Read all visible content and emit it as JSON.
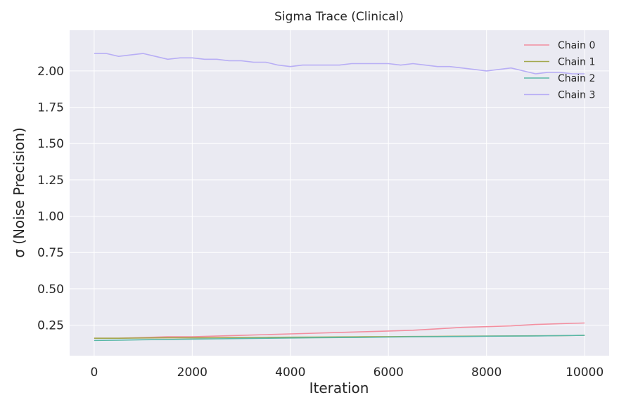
{
  "chart_data": {
    "type": "line",
    "title": "Sigma Trace (Clinical)",
    "xlabel": "Iteration",
    "ylabel": "σ (Noise Precision)",
    "xlim": [
      -500,
      10500
    ],
    "ylim": [
      0.04,
      2.28
    ],
    "xticks": [
      0,
      2000,
      4000,
      6000,
      8000,
      10000
    ],
    "yticks": [
      0.25,
      0.5,
      0.75,
      1.0,
      1.25,
      1.5,
      1.75,
      2.0
    ],
    "ytick_labels": [
      "0.25",
      "0.50",
      "0.75",
      "1.00",
      "1.25",
      "1.50",
      "1.75",
      "2.00"
    ],
    "grid": true,
    "legend_position": "top-right",
    "series": [
      {
        "name": "Chain 0",
        "color": "#f28e9f",
        "x": [
          0,
          500,
          1000,
          1500,
          2000,
          2500,
          3000,
          3500,
          4000,
          4500,
          5000,
          5500,
          6000,
          6500,
          7000,
          7500,
          8000,
          8500,
          9000,
          9500,
          10000
        ],
        "values": [
          0.16,
          0.16,
          0.165,
          0.17,
          0.17,
          0.175,
          0.18,
          0.185,
          0.19,
          0.195,
          0.2,
          0.205,
          0.21,
          0.215,
          0.225,
          0.235,
          0.24,
          0.245,
          0.255,
          0.26,
          0.265
        ]
      },
      {
        "name": "Chain 1",
        "color": "#a3a84e",
        "x": [
          0,
          500,
          1000,
          1500,
          2000,
          2500,
          3000,
          3500,
          4000,
          4500,
          5000,
          5500,
          6000,
          6500,
          7000,
          7500,
          8000,
          8500,
          9000,
          9500,
          10000
        ],
        "values": [
          0.16,
          0.16,
          0.162,
          0.163,
          0.163,
          0.164,
          0.165,
          0.166,
          0.167,
          0.168,
          0.169,
          0.17,
          0.171,
          0.172,
          0.173,
          0.174,
          0.175,
          0.176,
          0.177,
          0.178,
          0.18
        ]
      },
      {
        "name": "Chain 2",
        "color": "#5ab8a8",
        "x": [
          0,
          500,
          1000,
          1500,
          2000,
          2500,
          3000,
          3500,
          4000,
          4500,
          5000,
          5500,
          6000,
          6500,
          7000,
          7500,
          8000,
          8500,
          9000,
          9500,
          10000
        ],
        "values": [
          0.145,
          0.147,
          0.15,
          0.152,
          0.154,
          0.156,
          0.158,
          0.16,
          0.162,
          0.164,
          0.165,
          0.166,
          0.168,
          0.17,
          0.171,
          0.172,
          0.174,
          0.175,
          0.176,
          0.178,
          0.18
        ]
      },
      {
        "name": "Chain 3",
        "color": "#b8aef5",
        "x": [
          0,
          250,
          500,
          750,
          1000,
          1250,
          1500,
          1750,
          2000,
          2250,
          2500,
          2750,
          3000,
          3250,
          3500,
          3750,
          4000,
          4250,
          4500,
          4750,
          5000,
          5250,
          5500,
          5750,
          6000,
          6250,
          6500,
          6750,
          7000,
          7250,
          7500,
          7750,
          8000,
          8250,
          8500,
          8750,
          9000,
          9250,
          9500,
          9750,
          10000
        ],
        "values": [
          2.12,
          2.12,
          2.1,
          2.11,
          2.12,
          2.1,
          2.08,
          2.09,
          2.09,
          2.08,
          2.08,
          2.07,
          2.07,
          2.06,
          2.06,
          2.04,
          2.03,
          2.04,
          2.04,
          2.04,
          2.04,
          2.05,
          2.05,
          2.05,
          2.05,
          2.04,
          2.05,
          2.04,
          2.03,
          2.03,
          2.02,
          2.01,
          2.0,
          2.01,
          2.02,
          2.0,
          1.98,
          1.99,
          1.99,
          1.98,
          1.98
        ]
      }
    ]
  }
}
